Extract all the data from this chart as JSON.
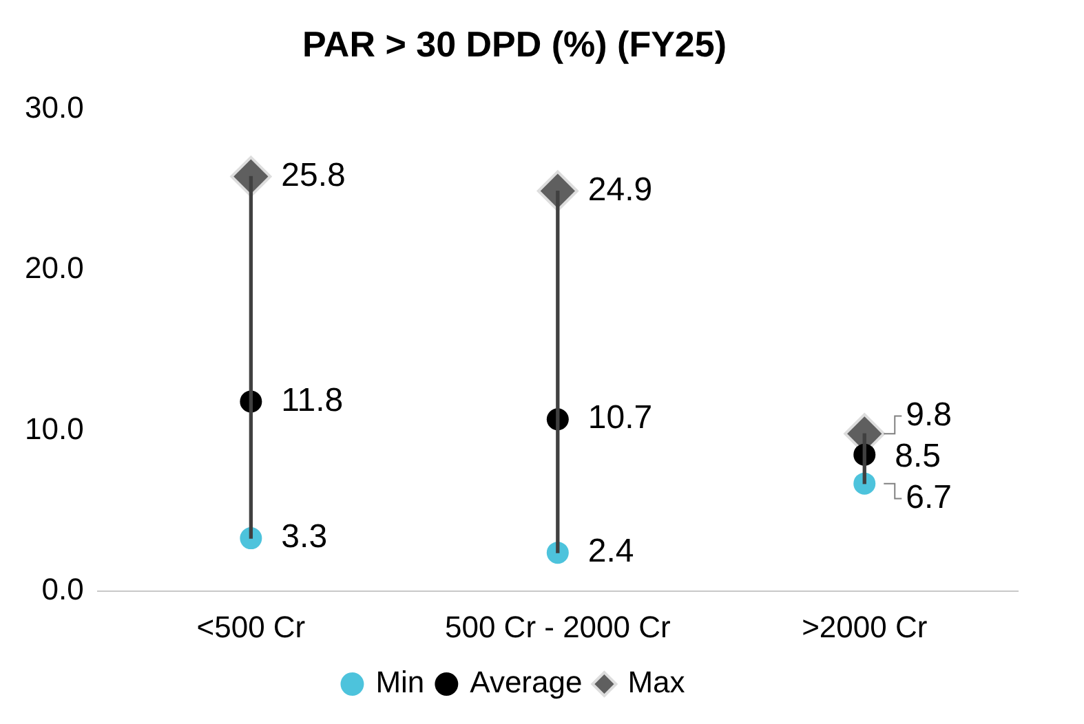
{
  "chart_data": {
    "type": "scatter",
    "title": "PAR > 30 DPD (%) (FY25)",
    "categories": [
      "<500 Cr",
      "500 Cr - 2000 Cr",
      ">2000 Cr"
    ],
    "series": [
      {
        "type": "bar",
        "color": "#404040",
        "base": [
          3.3,
          2.4,
          6.7
        ],
        "values": [
          22.5,
          22.5,
          3.1
        ],
        "value_labels": [
          null,
          null,
          null
        ]
      },
      {
        "name": "Min",
        "color": "#4dc3dc",
        "marker": "circle",
        "values": [
          3.3,
          2.4,
          6.7
        ],
        "value_labels": [
          "3.3",
          "2.4",
          "6.7"
        ]
      },
      {
        "name": "Average",
        "color": "#000000",
        "marker": "circle",
        "values": [
          11.8,
          10.7,
          8.5
        ],
        "value_labels": [
          "11.8",
          "10.7",
          "8.5"
        ]
      },
      {
        "name": "Max",
        "color": "#5f5f5f",
        "marker": "diamond",
        "values": [
          25.8,
          24.9,
          9.8
        ],
        "value_labels": [
          "25.8",
          "24.9",
          "9.8"
        ]
      }
    ],
    "ylim": [
      0,
      30
    ],
    "yticks": [
      {
        "value": 0,
        "label": "0.0"
      },
      {
        "value": 10,
        "label": "10.0"
      },
      {
        "value": 20,
        "label": "20.0"
      },
      {
        "value": 30,
        "label": "30.0"
      }
    ],
    "grid": false,
    "legend": "bottom"
  }
}
